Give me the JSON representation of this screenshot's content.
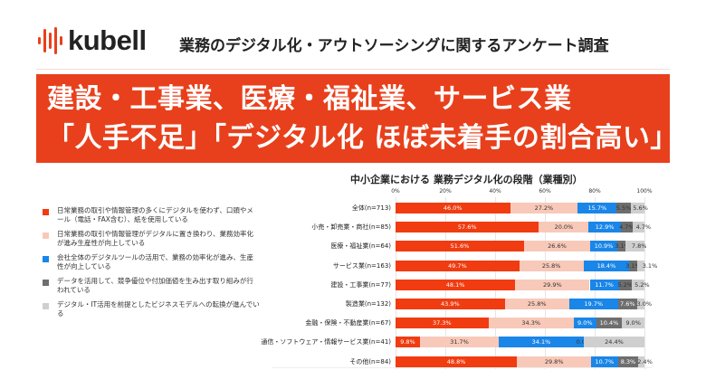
{
  "header": {
    "logo_text": "kubell",
    "subtitle": "業務のデジタル化・アウトソーシングに関するアンケート調査"
  },
  "banner": {
    "line1": "建設・工事業、医療・福祉業、サービス業",
    "line2": "「人手不足」「デジタル化 ほぼ未着手の割合高い」"
  },
  "colors": {
    "brand": "#e8401c",
    "series": [
      "#f03c10",
      "#f8c9b9",
      "#1a86e8",
      "#6e6e6e",
      "#cfcfcf"
    ],
    "label_colors": [
      "#fff",
      "#333",
      "#fff",
      "#fff",
      "#333"
    ]
  },
  "chart_data": {
    "type": "bar",
    "orientation": "horizontal",
    "stacked": true,
    "title": "中小企業における 業務デジタル化の段階（業種別）",
    "xlim": [
      0,
      100
    ],
    "x_ticks": [
      "0%",
      "20%",
      "40%",
      "60%",
      "80%",
      "100%"
    ],
    "grid": true,
    "legend_position": "left",
    "categories": [
      "全体(n=713)",
      "小売・卸売業・商社(n=85)",
      "医療・福祉業(n=64)",
      "サービス業(n=163)",
      "建設・工事業(n=77)",
      "製造業(n=132)",
      "金融・保険・不動産業(n=67)",
      "通信・ソフトウェア・情報サービス業(n=41)",
      "その他(n=84)"
    ],
    "series": [
      {
        "name": "日常業務の取引や情報管理の多くにデジタルを使わず、口頭やメール（電話・FAX含む）、紙を使用している",
        "values": [
          46.0,
          57.6,
          51.6,
          49.7,
          48.1,
          43.9,
          37.3,
          9.8,
          48.8
        ]
      },
      {
        "name": "日常業務の取引や情報管理がデジタルに置き換わり、業務効率化が進み生産性が向上している",
        "values": [
          27.2,
          20.0,
          26.6,
          25.8,
          29.9,
          25.8,
          34.3,
          31.7,
          29.8
        ]
      },
      {
        "name": "会社全体のデジタルツールの活用で、業務の効率化が進み、生産性が向上している",
        "values": [
          15.7,
          12.9,
          10.9,
          18.4,
          11.7,
          19.7,
          9.0,
          34.1,
          10.7
        ]
      },
      {
        "name": "データを活用して、競争優位や付加価値を生み出す取り組みが行われている",
        "values": [
          5.5,
          4.7,
          3.1,
          3.1,
          5.2,
          7.6,
          10.4,
          0.0,
          8.3
        ]
      },
      {
        "name": "デジタル・IT活用を前提としたビジネスモデルへの転換が進んでいる",
        "values": [
          5.6,
          4.7,
          7.8,
          3.1,
          5.2,
          3.0,
          9.0,
          24.4,
          2.4
        ]
      }
    ]
  }
}
